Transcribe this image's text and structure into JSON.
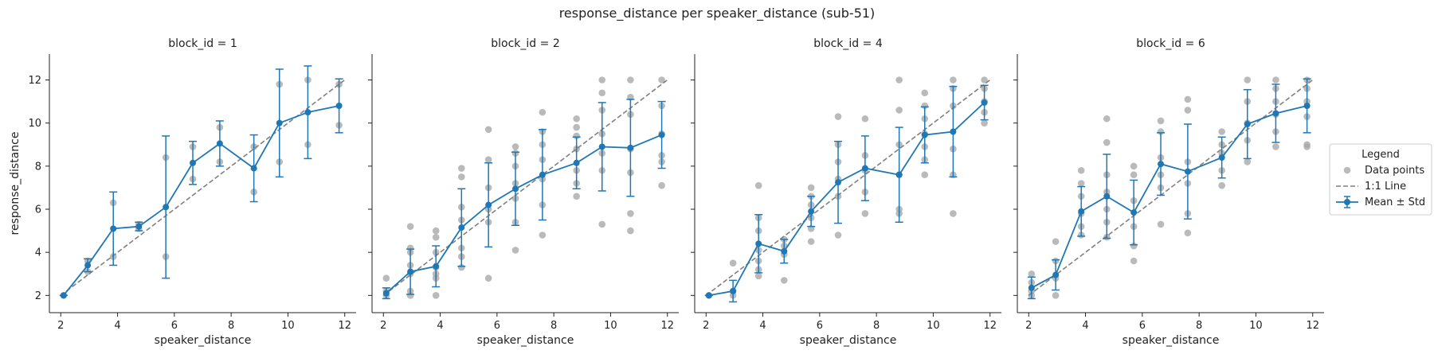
{
  "chart_data": {
    "type": "scatter",
    "title": "response_distance per speaker_distance (sub-51)",
    "xlabel": "speaker_distance",
    "ylabel": "response_distance",
    "xlim": [
      1.6,
      12.4
    ],
    "ylim": [
      1.2,
      13.2
    ],
    "xticks": [
      2,
      4,
      6,
      8,
      10,
      12
    ],
    "yticks": [
      2,
      4,
      6,
      8,
      10,
      12
    ],
    "legend": {
      "title": "Legend",
      "position": "right",
      "entries": [
        "Data points",
        "1:1 Line",
        "Mean ± Std"
      ]
    },
    "colors": {
      "mean": "#1f77b4",
      "points": "#a9a9a9",
      "identity": "#808080"
    },
    "panels": [
      {
        "title": "block_id = 1",
        "x": [
          2.1,
          2.95,
          3.85,
          4.75,
          5.7,
          6.65,
          7.6,
          8.8,
          9.7,
          10.7,
          11.8
        ],
        "mean": [
          2.0,
          3.4,
          5.1,
          5.2,
          6.1,
          8.15,
          9.05,
          7.9,
          10.0,
          10.5,
          10.8
        ],
        "std": [
          0.0,
          0.3,
          1.7,
          0.2,
          3.3,
          1.0,
          1.05,
          1.55,
          2.5,
          2.15,
          1.25
        ],
        "points": [
          [
            2.1,
            2.0
          ],
          [
            2.95,
            3.1
          ],
          [
            2.95,
            3.6
          ],
          [
            3.85,
            3.8
          ],
          [
            3.85,
            6.3
          ],
          [
            4.75,
            5.1
          ],
          [
            4.75,
            5.3
          ],
          [
            5.7,
            3.8
          ],
          [
            5.7,
            8.4
          ],
          [
            6.65,
            7.4
          ],
          [
            6.65,
            8.9
          ],
          [
            7.6,
            8.2
          ],
          [
            7.6,
            9.8
          ],
          [
            8.8,
            6.8
          ],
          [
            8.8,
            8.9
          ],
          [
            9.7,
            8.2
          ],
          [
            9.7,
            11.8
          ],
          [
            10.7,
            9.0
          ],
          [
            10.7,
            12.0
          ],
          [
            11.8,
            9.9
          ],
          [
            11.8,
            11.8
          ]
        ]
      },
      {
        "title": "block_id = 2",
        "x": [
          2.1,
          2.95,
          3.85,
          4.75,
          5.7,
          6.65,
          7.6,
          8.8,
          9.7,
          10.7,
          11.8
        ],
        "mean": [
          2.1,
          3.1,
          3.35,
          5.15,
          6.2,
          6.95,
          7.6,
          8.15,
          8.9,
          8.85,
          9.45
        ],
        "std": [
          0.25,
          1.05,
          0.95,
          1.8,
          1.95,
          1.7,
          2.1,
          1.2,
          2.05,
          2.25,
          1.55
        ],
        "points": [
          [
            2.1,
            2.0
          ],
          [
            2.1,
            2.2
          ],
          [
            2.1,
            2.8
          ],
          [
            2.95,
            2.0
          ],
          [
            2.95,
            2.2
          ],
          [
            2.95,
            3.0
          ],
          [
            2.95,
            3.4
          ],
          [
            2.95,
            4.0
          ],
          [
            2.95,
            4.2
          ],
          [
            2.95,
            5.2
          ],
          [
            3.85,
            2.0
          ],
          [
            3.85,
            2.8
          ],
          [
            3.85,
            3.0
          ],
          [
            3.85,
            3.3
          ],
          [
            3.85,
            4.0
          ],
          [
            3.85,
            4.7
          ],
          [
            3.85,
            5.0
          ],
          [
            4.75,
            3.3
          ],
          [
            4.75,
            3.8
          ],
          [
            4.75,
            4.2
          ],
          [
            4.75,
            5.5
          ],
          [
            4.75,
            6.1
          ],
          [
            4.75,
            7.5
          ],
          [
            4.75,
            7.9
          ],
          [
            5.7,
            2.8
          ],
          [
            5.7,
            5.4
          ],
          [
            5.7,
            6.0
          ],
          [
            5.7,
            7.0
          ],
          [
            5.7,
            8.3
          ],
          [
            5.7,
            9.7
          ],
          [
            6.65,
            4.1
          ],
          [
            6.65,
            5.4
          ],
          [
            6.65,
            6.5
          ],
          [
            6.65,
            7.2
          ],
          [
            6.65,
            8.0
          ],
          [
            6.65,
            8.6
          ],
          [
            6.65,
            8.9
          ],
          [
            7.6,
            4.8
          ],
          [
            7.6,
            6.2
          ],
          [
            7.6,
            7.4
          ],
          [
            7.6,
            8.3
          ],
          [
            7.6,
            9.0
          ],
          [
            7.6,
            9.6
          ],
          [
            7.6,
            10.5
          ],
          [
            8.8,
            6.6
          ],
          [
            8.8,
            7.2
          ],
          [
            8.8,
            7.8
          ],
          [
            8.8,
            8.8
          ],
          [
            8.8,
            9.4
          ],
          [
            8.8,
            9.8
          ],
          [
            8.8,
            10.2
          ],
          [
            9.7,
            5.3
          ],
          [
            9.7,
            7.8
          ],
          [
            9.7,
            8.6
          ],
          [
            9.7,
            9.5
          ],
          [
            9.7,
            10.6
          ],
          [
            9.7,
            11.4
          ],
          [
            9.7,
            12.0
          ],
          [
            10.7,
            5.0
          ],
          [
            10.7,
            5.8
          ],
          [
            10.7,
            7.7
          ],
          [
            10.7,
            8.8
          ],
          [
            10.7,
            10.4
          ],
          [
            10.7,
            11.2
          ],
          [
            10.7,
            12.0
          ],
          [
            11.8,
            7.1
          ],
          [
            11.8,
            8.2
          ],
          [
            11.8,
            8.5
          ],
          [
            11.8,
            9.5
          ],
          [
            11.8,
            10.8
          ],
          [
            11.8,
            12.0
          ]
        ]
      },
      {
        "title": "block_id = 4",
        "x": [
          2.1,
          2.95,
          3.85,
          4.75,
          5.7,
          6.65,
          7.6,
          8.8,
          9.7,
          10.7,
          11.8
        ],
        "mean": [
          2.0,
          2.2,
          4.4,
          4.05,
          5.9,
          7.25,
          7.9,
          7.6,
          9.45,
          9.6,
          10.95
        ],
        "std": [
          0.0,
          0.5,
          1.35,
          0.55,
          0.7,
          1.9,
          1.5,
          2.2,
          1.3,
          2.1,
          0.8
        ],
        "points": [
          [
            2.1,
            2.0
          ],
          [
            2.95,
            2.0
          ],
          [
            2.95,
            2.2
          ],
          [
            2.95,
            3.5
          ],
          [
            3.85,
            2.9
          ],
          [
            3.85,
            3.2
          ],
          [
            3.85,
            3.6
          ],
          [
            3.85,
            4.1
          ],
          [
            3.85,
            5.0
          ],
          [
            3.85,
            5.6
          ],
          [
            3.85,
            7.1
          ],
          [
            4.75,
            2.7
          ],
          [
            4.75,
            3.9
          ],
          [
            4.75,
            4.3
          ],
          [
            4.75,
            4.6
          ],
          [
            5.7,
            4.5
          ],
          [
            5.7,
            5.1
          ],
          [
            5.7,
            5.6
          ],
          [
            5.7,
            6.2
          ],
          [
            5.7,
            6.6
          ],
          [
            5.7,
            7.0
          ],
          [
            6.65,
            4.8
          ],
          [
            6.65,
            6.6
          ],
          [
            6.65,
            7.4
          ],
          [
            6.65,
            8.2
          ],
          [
            6.65,
            9.0
          ],
          [
            6.65,
            10.3
          ],
          [
            7.6,
            5.8
          ],
          [
            7.6,
            6.8
          ],
          [
            7.6,
            7.8
          ],
          [
            7.6,
            8.5
          ],
          [
            7.6,
            10.2
          ],
          [
            8.8,
            5.8
          ],
          [
            8.8,
            6.0
          ],
          [
            8.8,
            7.6
          ],
          [
            8.8,
            9.0
          ],
          [
            8.8,
            10.6
          ],
          [
            8.8,
            12.0
          ],
          [
            9.7,
            7.6
          ],
          [
            9.7,
            8.3
          ],
          [
            9.7,
            8.9
          ],
          [
            9.7,
            9.5
          ],
          [
            9.7,
            10.2
          ],
          [
            9.7,
            10.8
          ],
          [
            9.7,
            11.4
          ],
          [
            10.7,
            5.8
          ],
          [
            10.7,
            7.6
          ],
          [
            10.7,
            8.8
          ],
          [
            10.7,
            10.8
          ],
          [
            10.7,
            11.6
          ],
          [
            10.7,
            12.0
          ],
          [
            11.8,
            10.0
          ],
          [
            11.8,
            10.5
          ],
          [
            11.8,
            11.0
          ],
          [
            11.8,
            11.6
          ],
          [
            11.8,
            12.0
          ]
        ]
      },
      {
        "title": "block_id = 6",
        "x": [
          2.1,
          2.95,
          3.85,
          4.75,
          5.7,
          6.65,
          7.6,
          8.8,
          9.7,
          10.7,
          11.8
        ],
        "mean": [
          2.35,
          2.95,
          5.9,
          6.6,
          5.85,
          8.1,
          7.75,
          8.4,
          9.95,
          10.45,
          10.8
        ],
        "std": [
          0.5,
          0.7,
          1.15,
          1.95,
          1.5,
          1.45,
          2.2,
          0.95,
          1.6,
          1.35,
          1.25
        ],
        "points": [
          [
            2.1,
            2.0
          ],
          [
            2.1,
            2.2
          ],
          [
            2.1,
            2.6
          ],
          [
            2.1,
            3.0
          ],
          [
            2.95,
            2.0
          ],
          [
            2.95,
            2.8
          ],
          [
            2.95,
            3.6
          ],
          [
            2.95,
            4.5
          ],
          [
            3.85,
            4.8
          ],
          [
            3.85,
            5.2
          ],
          [
            3.85,
            5.8
          ],
          [
            3.85,
            6.6
          ],
          [
            3.85,
            7.2
          ],
          [
            3.85,
            7.8
          ],
          [
            4.75,
            4.7
          ],
          [
            4.75,
            5.4
          ],
          [
            4.75,
            6.0
          ],
          [
            4.75,
            6.8
          ],
          [
            4.75,
            7.6
          ],
          [
            4.75,
            9.1
          ],
          [
            4.75,
            10.2
          ],
          [
            5.7,
            3.6
          ],
          [
            5.7,
            4.3
          ],
          [
            5.7,
            5.2
          ],
          [
            5.7,
            6.4
          ],
          [
            5.7,
            7.6
          ],
          [
            5.7,
            8.0
          ],
          [
            6.65,
            5.3
          ],
          [
            6.65,
            7.0
          ],
          [
            6.65,
            7.6
          ],
          [
            6.65,
            8.4
          ],
          [
            6.65,
            9.6
          ],
          [
            6.65,
            10.1
          ],
          [
            7.6,
            4.9
          ],
          [
            7.6,
            5.8
          ],
          [
            7.6,
            7.2
          ],
          [
            7.6,
            8.2
          ],
          [
            7.6,
            10.6
          ],
          [
            7.6,
            11.1
          ],
          [
            8.8,
            7.1
          ],
          [
            8.8,
            7.8
          ],
          [
            8.8,
            8.6
          ],
          [
            8.8,
            9.0
          ],
          [
            8.8,
            9.6
          ],
          [
            9.7,
            8.2
          ],
          [
            9.7,
            9.2
          ],
          [
            9.7,
            10.0
          ],
          [
            9.7,
            11.0
          ],
          [
            9.7,
            12.0
          ],
          [
            10.7,
            8.9
          ],
          [
            10.7,
            9.6
          ],
          [
            10.7,
            10.4
          ],
          [
            10.7,
            11.0
          ],
          [
            10.7,
            11.6
          ],
          [
            10.7,
            12.0
          ],
          [
            11.8,
            8.9
          ],
          [
            11.8,
            9.0
          ],
          [
            11.8,
            10.3
          ],
          [
            11.8,
            11.0
          ],
          [
            11.8,
            11.6
          ],
          [
            11.8,
            12.0
          ]
        ]
      }
    ]
  }
}
